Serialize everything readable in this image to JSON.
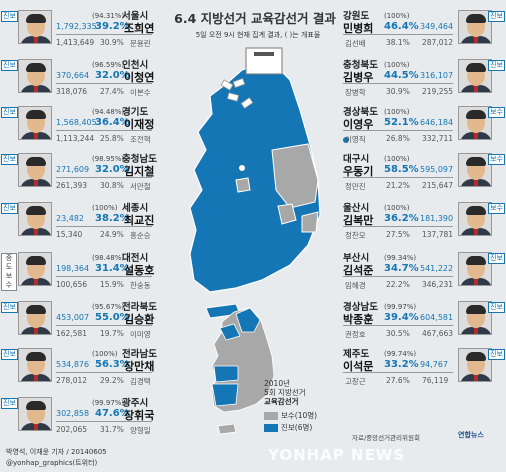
{
  "header": {
    "title": "6.4 지방선거 교육감선거 결과",
    "subtitle": "5일 오전 9시 현재 집계 결과, ( )는 개표율"
  },
  "colors": {
    "progressive": "#1476b4",
    "conservative": "#a8a8a8",
    "background": "#e8ebee"
  },
  "left_results": [
    {
      "region": "서울시",
      "count": "(94.31%)",
      "winner_votes": "1,792,335",
      "winner_pct": "39.2%",
      "winner": "조희연",
      "runner_votes": "1,413,649",
      "runner_pct": "30.9%",
      "runner": "문용린",
      "badge": "진보"
    },
    {
      "region": "인천시",
      "count": "(96.59%)",
      "winner_votes": "370,664",
      "winner_pct": "32.0%",
      "winner": "이청연",
      "runner_votes": "318,076",
      "runner_pct": "27.4%",
      "runner": "이본수",
      "badge": "진보"
    },
    {
      "region": "경기도",
      "count": "(94.48%)",
      "winner_votes": "1,568,405",
      "winner_pct": "36.4%",
      "winner": "이재정",
      "runner_votes": "1,113,244",
      "runner_pct": "25.8%",
      "runner": "조전혁",
      "badge": "진보"
    },
    {
      "region": "충청남도",
      "count": "(98.95%)",
      "winner_votes": "271,609",
      "winner_pct": "32.0%",
      "winner": "김지철",
      "runner_votes": "261,393",
      "runner_pct": "30.8%",
      "runner": "서만철",
      "badge": "진보"
    },
    {
      "region": "세종시",
      "count": "(100%)",
      "winner_votes": "23,482",
      "winner_pct": "38.2%",
      "winner": "최교진",
      "runner_votes": "15,340",
      "runner_pct": "24.9%",
      "runner": "홍순승",
      "badge": "진보"
    },
    {
      "region": "대전시",
      "count": "(98.48%)",
      "winner_votes": "198,364",
      "winner_pct": "31.4%",
      "winner": "설동호",
      "runner_votes": "100,656",
      "runner_pct": "15.9%",
      "runner": "한숭동",
      "badge": "중도보수"
    },
    {
      "region": "전라북도",
      "count": "(95.67%)",
      "winner_votes": "453,007",
      "winner_pct": "55.0%",
      "winner": "김승환",
      "runner_votes": "162,581",
      "runner_pct": "19.7%",
      "runner": "이미영",
      "badge": "진보"
    },
    {
      "region": "전라남도",
      "count": "(100%)",
      "winner_votes": "534,876",
      "winner_pct": "56.3%",
      "winner": "장만채",
      "runner_votes": "278,012",
      "runner_pct": "29.2%",
      "runner": "김경택",
      "badge": "진보"
    },
    {
      "region": "광주시",
      "count": "(99.97%)",
      "winner_votes": "302,858",
      "winner_pct": "47.6%",
      "winner": "장휘국",
      "runner_votes": "202,065",
      "runner_pct": "31.7%",
      "runner": "양형일",
      "badge": "진보"
    }
  ],
  "right_results": [
    {
      "region": "강원도",
      "count": "(100%)",
      "winner": "민병희",
      "winner_pct": "46.4%",
      "winner_votes": "349,464",
      "runner": "김선배",
      "runner_pct": "38.1%",
      "runner_votes": "287,012",
      "badge": "진보"
    },
    {
      "region": "충청북도",
      "count": "(100%)",
      "winner": "김병우",
      "winner_pct": "44.5%",
      "winner_votes": "316,107",
      "runner": "장병학",
      "runner_pct": "30.9%",
      "runner_votes": "219,255",
      "badge": "진보"
    },
    {
      "region": "경상북도",
      "count": "(100%)",
      "winner": "이영우",
      "winner_pct": "52.1%",
      "winner_votes": "646,184",
      "runner": "이영직",
      "runner_pct": "26.8%",
      "runner_votes": "332,711",
      "badge": "보수"
    },
    {
      "region": "대구시",
      "count": "(100%)",
      "winner": "우동기",
      "winner_pct": "58.5%",
      "winner_votes": "595,097",
      "runner": "정만진",
      "runner_pct": "21.2%",
      "runner_votes": "215,647",
      "badge": "보수"
    },
    {
      "region": "울산시",
      "count": "(100%)",
      "winner": "김복만",
      "winner_pct": "36.2%",
      "winner_votes": "181,390",
      "runner": "정찬모",
      "runner_pct": "27.5%",
      "runner_votes": "137,781",
      "badge": "보수"
    },
    {
      "region": "부산시",
      "count": "(99.34%)",
      "winner": "김석준",
      "winner_pct": "34.7%",
      "winner_votes": "541,222",
      "runner": "임혜경",
      "runner_pct": "22.2%",
      "runner_votes": "346,231",
      "badge": "진보"
    },
    {
      "region": "경상남도",
      "count": "(99.97%)",
      "winner": "박종훈",
      "winner_pct": "39.4%",
      "winner_votes": "604,581",
      "runner": "권정호",
      "runner_pct": "30.5%",
      "runner_votes": "467,663",
      "badge": "진보"
    },
    {
      "region": "제주도",
      "count": "(99.74%)",
      "winner": "이석문",
      "winner_pct": "33.2%",
      "winner_votes": "94,767",
      "runner": "고창근",
      "runner_pct": "27.6%",
      "runner_votes": "76,119",
      "badge": "진보"
    }
  ],
  "legend": {
    "year": "2010년",
    "election": "5회 지방선거",
    "label": "교육감선거",
    "conservative": "보수(10명)",
    "progressive": "진보(6명)"
  },
  "footer": {
    "source": "자료/중앙선거관리위원회",
    "agency": "연합뉴스",
    "credit": "박영석, 이재윤 기자 / 20140605",
    "twitter": "@yonhap_graphics(트위터)",
    "watermark": "YONHAP NEWS"
  }
}
